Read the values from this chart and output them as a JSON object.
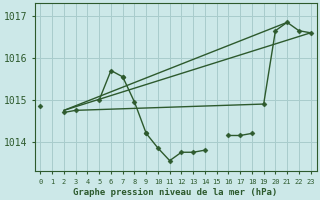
{
  "title": "Graphe pression niveau de la mer (hPa)",
  "bg_color": "#cce8e8",
  "grid_color": "#a8cccc",
  "line_color": "#2d5a2d",
  "xlim": [
    -0.5,
    23.5
  ],
  "ylim": [
    1013.3,
    1017.3
  ],
  "yticks": [
    1014,
    1015,
    1016,
    1017
  ],
  "xticks": [
    0,
    1,
    2,
    3,
    4,
    5,
    6,
    7,
    8,
    9,
    10,
    11,
    12,
    13,
    14,
    15,
    16,
    17,
    18,
    19,
    20,
    21,
    22,
    23
  ],
  "series_main": {
    "segments": [
      {
        "x": [
          0
        ],
        "y": [
          1014.85
        ]
      },
      {
        "x": [
          2,
          3
        ],
        "y": [
          1014.7,
          1014.75
        ]
      },
      {
        "x": [
          5,
          6,
          7
        ],
        "y": [
          1015.0,
          1015.7,
          1015.55
        ]
      },
      {
        "x": [
          7,
          8,
          9
        ],
        "y": [
          1015.55,
          1014.95,
          1014.2
        ]
      },
      {
        "x": [
          9,
          10,
          11,
          12,
          13,
          14
        ],
        "y": [
          1014.2,
          1013.85,
          1013.55,
          1013.75,
          1013.75,
          1013.8
        ]
      },
      {
        "x": [
          16,
          17,
          18
        ],
        "y": [
          1014.15,
          1014.15,
          1014.2
        ]
      },
      {
        "x": [
          19,
          20,
          21,
          22,
          23
        ],
        "y": [
          1014.9,
          1016.65,
          1016.85,
          1016.65,
          1016.6
        ]
      }
    ]
  },
  "series_line1": {
    "x": [
      2,
      21
    ],
    "y": [
      1014.75,
      1016.85
    ]
  },
  "series_line2": {
    "x": [
      2,
      23
    ],
    "y": [
      1014.75,
      1016.6
    ]
  },
  "series_line3": {
    "x": [
      3,
      19
    ],
    "y": [
      1014.75,
      1014.9
    ]
  }
}
